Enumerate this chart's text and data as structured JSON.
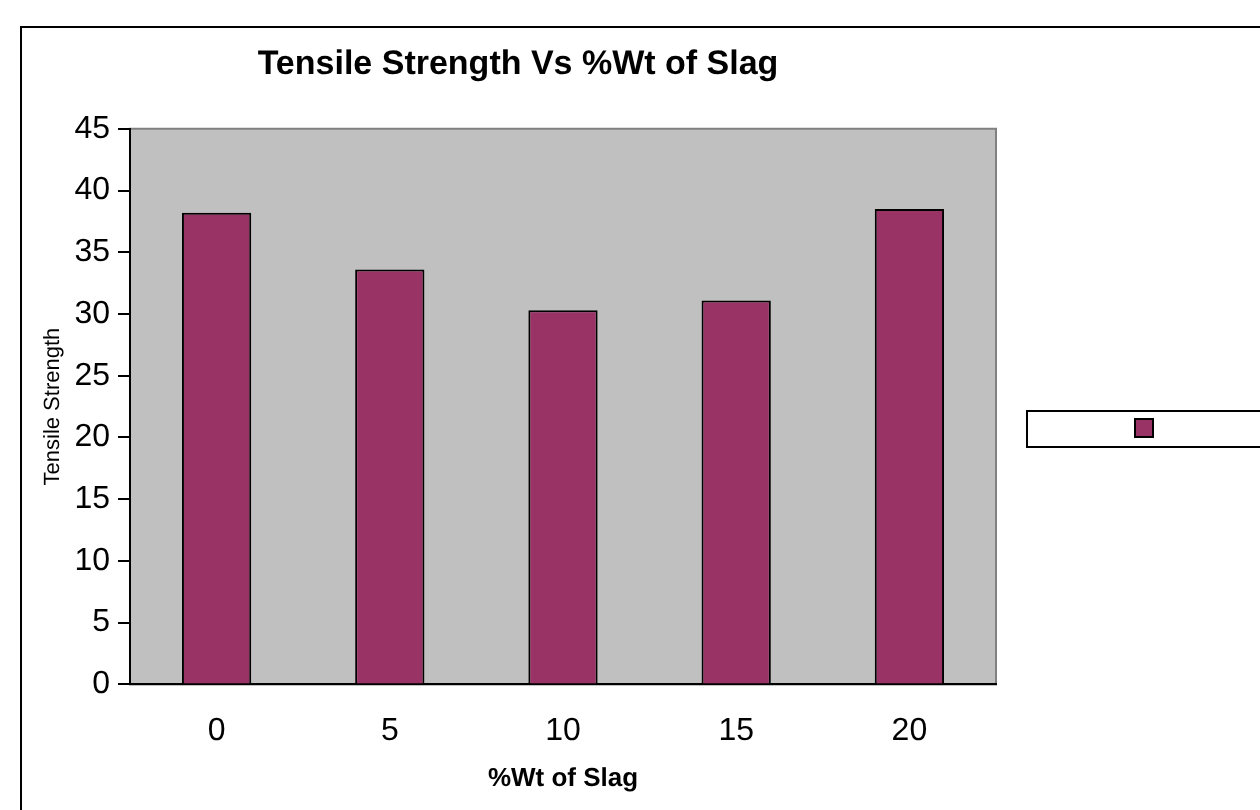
{
  "chart_data": {
    "type": "bar",
    "title": "Tensile Strength Vs %Wt of Slag",
    "xlabel": "%Wt of Slag",
    "ylabel": "Tensile Strength",
    "categories": [
      "0",
      "5",
      "10",
      "15",
      "20"
    ],
    "series": [
      {
        "color": "#993366",
        "values": [
          38.2,
          33.6,
          30.3,
          31.1,
          38.5
        ]
      }
    ],
    "ylim": [
      0,
      45
    ],
    "yticks": [
      0,
      5,
      10,
      15,
      20,
      25,
      30,
      35,
      40,
      45
    ],
    "grid": false
  }
}
